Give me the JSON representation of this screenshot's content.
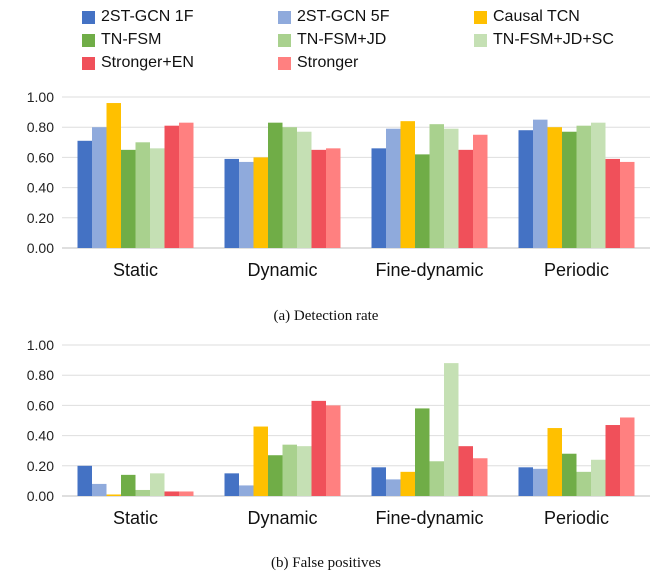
{
  "chart_data": [
    {
      "type": "bar",
      "title": "",
      "caption": "(a) Detection rate",
      "categories": [
        "Static",
        "Dynamic",
        "Fine-dynamic",
        "Periodic"
      ],
      "ylim": [
        0,
        1
      ],
      "yticks": [
        "0.00",
        "0.20",
        "0.40",
        "0.60",
        "0.80",
        "1.00"
      ],
      "grid": true,
      "legend": "top",
      "series": [
        {
          "name": "2ST-GCN 1F",
          "color": "#4472C4",
          "values": [
            0.71,
            0.59,
            0.66,
            0.78
          ]
        },
        {
          "name": "2ST-GCN 5F",
          "color": "#8FAADC",
          "values": [
            0.8,
            0.57,
            0.79,
            0.85
          ]
        },
        {
          "name": "Causal TCN",
          "color": "#FFC000",
          "values": [
            0.96,
            0.6,
            0.84,
            0.8
          ]
        },
        {
          "name": "TN-FSM",
          "color": "#70AD47",
          "values": [
            0.65,
            0.83,
            0.62,
            0.77
          ]
        },
        {
          "name": "TN-FSM+JD",
          "color": "#A9D18E",
          "values": [
            0.7,
            0.8,
            0.82,
            0.81
          ]
        },
        {
          "name": "TN-FSM+JD+SC",
          "color": "#C5E0B4",
          "values": [
            0.66,
            0.77,
            0.79,
            0.83
          ]
        },
        {
          "name": "Stronger+EN",
          "color": "#F0505A",
          "values": [
            0.81,
            0.65,
            0.65,
            0.59
          ]
        },
        {
          "name": "Stronger",
          "color": "#FF8080",
          "values": [
            0.83,
            0.66,
            0.75,
            0.57
          ]
        }
      ]
    },
    {
      "type": "bar",
      "title": "",
      "caption": "(b) False positives",
      "categories": [
        "Static",
        "Dynamic",
        "Fine-dynamic",
        "Periodic"
      ],
      "ylim": [
        0,
        1
      ],
      "yticks": [
        "0.00",
        "0.20",
        "0.40",
        "0.60",
        "0.80",
        "1.00"
      ],
      "grid": true,
      "legend": "top",
      "series": [
        {
          "name": "2ST-GCN 1F",
          "color": "#4472C4",
          "values": [
            0.2,
            0.15,
            0.19,
            0.19
          ]
        },
        {
          "name": "2ST-GCN 5F",
          "color": "#8FAADC",
          "values": [
            0.08,
            0.07,
            0.11,
            0.18
          ]
        },
        {
          "name": "Causal TCN",
          "color": "#FFC000",
          "values": [
            0.01,
            0.46,
            0.16,
            0.45
          ]
        },
        {
          "name": "TN-FSM",
          "color": "#70AD47",
          "values": [
            0.14,
            0.27,
            0.58,
            0.28
          ]
        },
        {
          "name": "TN-FSM+JD",
          "color": "#A9D18E",
          "values": [
            0.04,
            0.34,
            0.23,
            0.16
          ]
        },
        {
          "name": "TN-FSM+JD+SC",
          "color": "#C5E0B4",
          "values": [
            0.15,
            0.33,
            0.88,
            0.24
          ]
        },
        {
          "name": "Stronger+EN",
          "color": "#F0505A",
          "values": [
            0.03,
            0.63,
            0.33,
            0.47
          ]
        },
        {
          "name": "Stronger",
          "color": "#FF8080",
          "values": [
            0.03,
            0.6,
            0.25,
            0.52
          ]
        }
      ]
    }
  ]
}
